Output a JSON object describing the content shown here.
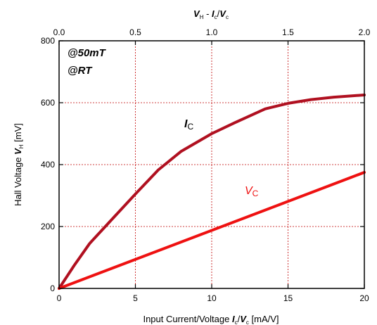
{
  "chart_data": {
    "type": "line",
    "xlabel": "Input Current/Voltage",
    "xlabel_italic": "I_c/V_c",
    "xlabel_unit": "[mA/V]",
    "ylabel": "Hall Voltage",
    "ylabel_italic": "V_H",
    "ylabel_unit": "[mV]",
    "top_axis_label": "V_H - I_c/V_c",
    "xlim": [
      0,
      20
    ],
    "ylim": [
      0,
      800
    ],
    "top_xlim": [
      0,
      2.0
    ],
    "x_ticks": [
      "0",
      "5",
      "10",
      "15",
      "20"
    ],
    "y_ticks": [
      "0",
      "200",
      "400",
      "600",
      "800"
    ],
    "top_ticks": [
      "0.0",
      "0.5",
      "1.0",
      "1.5",
      "2.0"
    ],
    "grid": true,
    "annotations": [
      "@50mT",
      "@RT"
    ],
    "series": [
      {
        "name": "I",
        "name_sub": "C",
        "color": "#b01020",
        "x": [
          0,
          1,
          2,
          3.5,
          5,
          6.5,
          8,
          10,
          11.5,
          13.5,
          15,
          16.5,
          18,
          20
        ],
        "y": [
          0,
          75,
          145,
          225,
          305,
          383,
          443,
          500,
          535,
          580,
          598,
          610,
          618,
          625
        ]
      },
      {
        "name": "V",
        "name_sub": "C",
        "color": "#ee1111",
        "x": [
          0,
          20
        ],
        "y": [
          0,
          375
        ]
      }
    ]
  }
}
